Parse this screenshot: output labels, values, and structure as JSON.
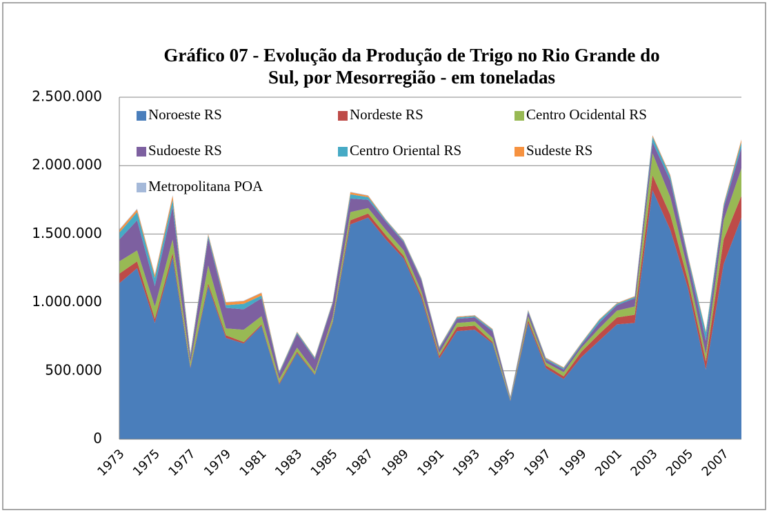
{
  "chart_data": {
    "type": "stacked_area",
    "title": "Gráfico 07 - Evolução da Produção de Trigo no Rio Grande do Sul, por Mesorregião - em toneladas",
    "categories": [
      "1973",
      null,
      "1975",
      null,
      "1977",
      null,
      "1979",
      null,
      "1981",
      null,
      "1983",
      null,
      "1985",
      null,
      "1987",
      null,
      "1989",
      null,
      "1991",
      null,
      "1993",
      null,
      "1995",
      null,
      "1997",
      null,
      "1999",
      null,
      "2001",
      null,
      "2003",
      null,
      "2005",
      null,
      "2007",
      null
    ],
    "series": [
      {
        "name": "Noroeste RS",
        "color": "#4a7ebb",
        "values": [
          1140000,
          1250000,
          850000,
          1330000,
          520000,
          1120000,
          740000,
          700000,
          830000,
          400000,
          630000,
          470000,
          850000,
          1570000,
          1620000,
          1460000,
          1320000,
          1030000,
          590000,
          790000,
          800000,
          700000,
          280000,
          850000,
          520000,
          440000,
          600000,
          720000,
          840000,
          850000,
          1820000,
          1530000,
          1100000,
          510000,
          1280000,
          1620000
        ]
      },
      {
        "name": "Nordeste RS",
        "color": "#be4b48",
        "values": [
          70000,
          50000,
          30000,
          30000,
          10000,
          20000,
          20000,
          10000,
          10000,
          10000,
          10000,
          5000,
          10000,
          30000,
          30000,
          30000,
          20000,
          20000,
          20000,
          30000,
          30000,
          10000,
          5000,
          20000,
          20000,
          20000,
          40000,
          50000,
          50000,
          60000,
          110000,
          110000,
          60000,
          60000,
          180000,
          160000
        ]
      },
      {
        "name": "Centro Ocidental RS",
        "color": "#98b954",
        "values": [
          90000,
          80000,
          90000,
          100000,
          30000,
          130000,
          50000,
          90000,
          60000,
          30000,
          30000,
          20000,
          30000,
          60000,
          40000,
          40000,
          40000,
          30000,
          20000,
          30000,
          30000,
          30000,
          10000,
          30000,
          20000,
          30000,
          30000,
          40000,
          50000,
          60000,
          160000,
          130000,
          70000,
          50000,
          140000,
          200000
        ]
      },
      {
        "name": "Sudoeste RS",
        "color": "#7d60a0",
        "values": [
          160000,
          220000,
          150000,
          240000,
          40000,
          200000,
          150000,
          150000,
          130000,
          40000,
          100000,
          90000,
          100000,
          100000,
          60000,
          60000,
          60000,
          80000,
          30000,
          30000,
          30000,
          50000,
          10000,
          30000,
          20000,
          20000,
          20000,
          40000,
          40000,
          60000,
          80000,
          120000,
          80000,
          100000,
          90000,
          150000
        ]
      },
      {
        "name": "Centro Oriental RS",
        "color": "#46aac5",
        "values": [
          50000,
          60000,
          60000,
          50000,
          20000,
          20000,
          20000,
          40000,
          20000,
          10000,
          10000,
          10000,
          10000,
          30000,
          20000,
          10000,
          10000,
          10000,
          10000,
          10000,
          10000,
          10000,
          5000,
          10000,
          10000,
          10000,
          10000,
          20000,
          10000,
          10000,
          40000,
          30000,
          20000,
          60000,
          20000,
          40000
        ]
      },
      {
        "name": "Sudeste RS",
        "color": "#f69240",
        "values": [
          20000,
          20000,
          20000,
          30000,
          10000,
          10000,
          20000,
          20000,
          20000,
          5000,
          5000,
          5000,
          5000,
          15000,
          10000,
          5000,
          5000,
          5000,
          5000,
          5000,
          5000,
          5000,
          2000,
          5000,
          5000,
          5000,
          5000,
          5000,
          5000,
          5000,
          10000,
          10000,
          10000,
          10000,
          10000,
          20000
        ]
      },
      {
        "name": "Metropolitana POA",
        "color": "#a5b9d9",
        "values": [
          5000,
          5000,
          5000,
          5000,
          2000,
          3000,
          3000,
          3000,
          3000,
          2000,
          2000,
          2000,
          2000,
          3000,
          3000,
          2000,
          2000,
          2000,
          2000,
          2000,
          2000,
          2000,
          1000,
          2000,
          2000,
          2000,
          2000,
          2000,
          2000,
          2000,
          3000,
          3000,
          2000,
          2000,
          2000,
          3000
        ]
      }
    ],
    "ylim": [
      0,
      2500000
    ],
    "yticks": [
      0,
      {
        "value": 500000,
        "label": "500.000"
      },
      {
        "value": 1000000,
        "label": "1.000.000"
      },
      {
        "value": 1500000,
        "label": "1.500.000"
      },
      {
        "value": 2000000,
        "label": "2.000.000"
      },
      {
        "value": 2500000,
        "label": "2.500.000"
      }
    ],
    "grid": true,
    "legend": "top"
  }
}
